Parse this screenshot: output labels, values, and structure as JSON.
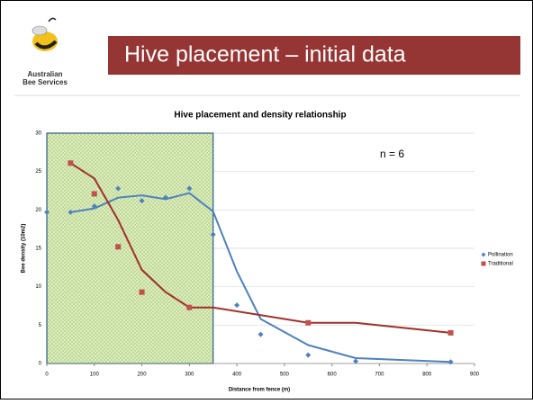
{
  "logo": {
    "line1": "Australian",
    "line2": "Bee Services"
  },
  "slide_title": "Hive placement – initial data",
  "chart_data": {
    "type": "scatter",
    "title": "Hive placement and density relationship",
    "x_label": "Distance from fence (m)",
    "y_label": "Bee density (10m2)",
    "annotation": "n = 6",
    "shaded_region": [
      0,
      350
    ],
    "xlim": [
      0,
      900
    ],
    "xticks": [
      0,
      100,
      200,
      300,
      400,
      500,
      600,
      700,
      800,
      900
    ],
    "ylim": [
      0,
      30
    ],
    "yticks": [
      0,
      5,
      10,
      15,
      20,
      25,
      30
    ],
    "grid": true,
    "legend": "right",
    "series": [
      {
        "name": "Pollination",
        "color": "#4f81bd",
        "marker": "diamond",
        "x": [
          0,
          50,
          100,
          150,
          200,
          250,
          300,
          350,
          400,
          450,
          550,
          650,
          850
        ],
        "values": [
          19.7,
          19.7,
          20.5,
          22.8,
          21.2,
          21.6,
          22.8,
          16.8,
          7.6,
          3.8,
          1.1,
          0.3,
          0.2
        ],
        "trend_x": [
          50,
          100,
          150,
          200,
          250,
          300,
          350,
          400,
          450,
          550,
          650,
          850
        ],
        "trend_values": [
          19.7,
          20.2,
          21.6,
          21.9,
          21.4,
          22.2,
          19.8,
          12,
          5.8,
          2.4,
          0.7,
          0.2
        ]
      },
      {
        "name": "Traditional",
        "color": "#c0504d",
        "trend_color": "#a0302a",
        "marker": "square",
        "x": [
          50,
          100,
          150,
          200,
          300,
          550,
          850
        ],
        "values": [
          26.1,
          22.1,
          15.2,
          9.3,
          7.3,
          5.3,
          4.0
        ],
        "trend_x": [
          50,
          100,
          150,
          200,
          250,
          300,
          350,
          550,
          650,
          850
        ],
        "trend_values": [
          26.1,
          24.1,
          18.7,
          12.2,
          9.3,
          7.3,
          7.3,
          5.3,
          5.3,
          4.0
        ]
      }
    ]
  }
}
